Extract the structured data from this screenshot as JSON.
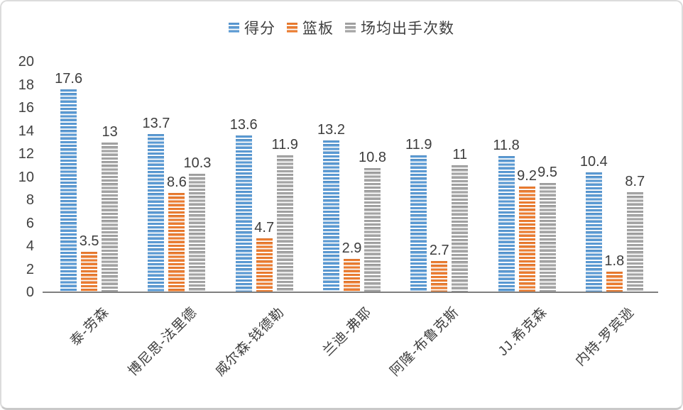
{
  "chart_data": {
    "type": "bar",
    "title": "",
    "categories": [
      "泰-劳森",
      "博尼思-法里德",
      "威尔森-钱德勒",
      "兰迪-弗耶",
      "阿隆-布鲁克斯",
      "JJ.希克森",
      "内特-罗宾逊"
    ],
    "series": [
      {
        "name": "得分",
        "color": "#5B9BD5",
        "values": [
          17.6,
          13.7,
          13.6,
          13.2,
          11.9,
          11.8,
          10.4
        ]
      },
      {
        "name": "篮板",
        "color": "#ED7D31",
        "values": [
          3.5,
          8.6,
          4.7,
          2.9,
          2.7,
          9.2,
          1.8
        ]
      },
      {
        "name": "场均出手次数",
        "color": "#A5A5A5",
        "values": [
          13,
          10.3,
          11.9,
          10.8,
          11,
          9.5,
          8.7
        ]
      }
    ],
    "xlabel": "",
    "ylabel": "",
    "ylim": [
      0,
      20
    ],
    "ytick_step": 2,
    "ytick_labels": [
      "0",
      "2",
      "4",
      "6",
      "8",
      "10",
      "12",
      "14",
      "16",
      "18",
      "20"
    ],
    "grid": false,
    "legend_position": "top",
    "bar_fill_pattern": "horizontal-stripes",
    "axis_line_color": "#7f7f7f",
    "text_color": "#404040"
  }
}
